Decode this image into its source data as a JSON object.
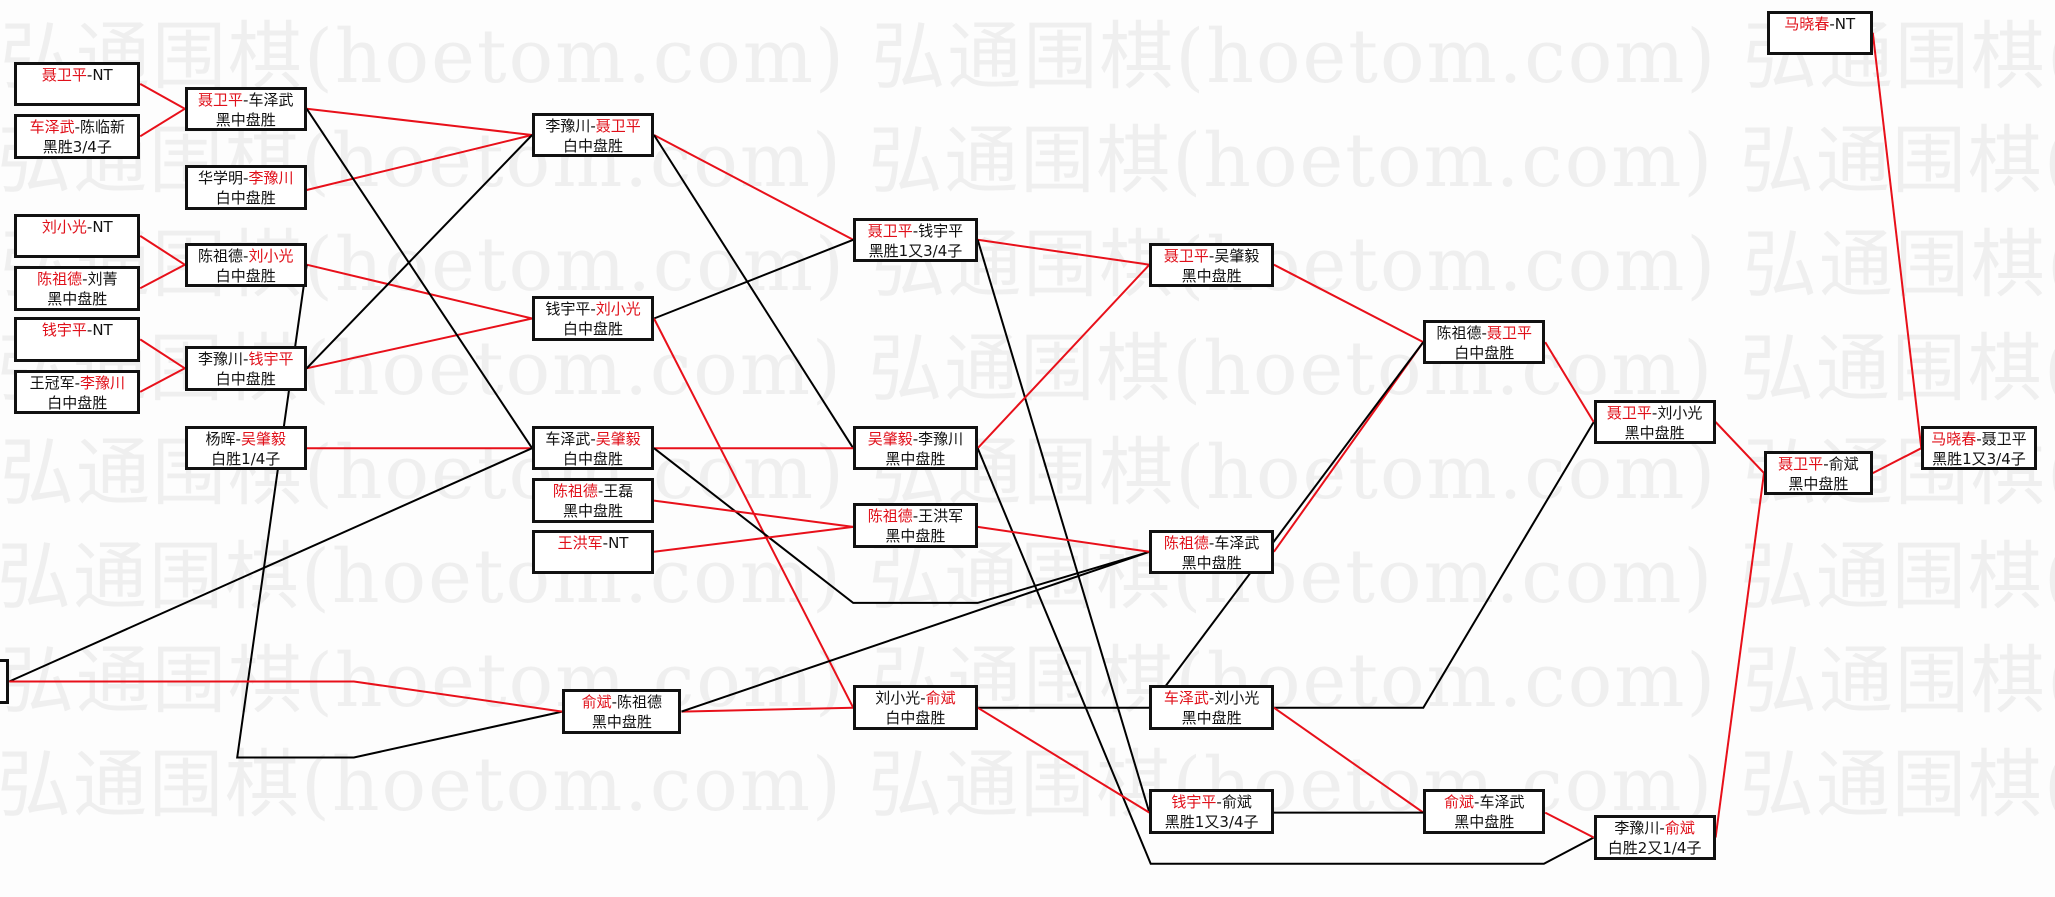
{
  "watermark": "弘通围棋(hoetom.com) 弘通围棋(hoetom.com) 弘通围棋(hoetom.com) 弘通围棋(hoetom.com)",
  "matches": [
    {
      "a": "聂卫平",
      "sep": "-",
      "b": "NT",
      "winner": "a",
      "result": ""
    },
    {
      "a": "车泽武",
      "sep": "-",
      "b": "陈临新",
      "winner": "a",
      "result": "黑胜3/4子"
    },
    {
      "a": "刘小光",
      "sep": "-",
      "b": "NT",
      "winner": "a",
      "result": ""
    },
    {
      "a": "陈祖德",
      "sep": "-",
      "b": "刘菁",
      "winner": "a",
      "result": "黑中盘胜"
    },
    {
      "a": "钱宇平",
      "sep": "-",
      "b": "NT",
      "winner": "a",
      "result": ""
    },
    {
      "a": "王冠军",
      "sep": "-",
      "b": "李豫川",
      "winner": "b",
      "result": "白中盘胜"
    },
    {
      "a": "聂卫平",
      "sep": "-",
      "b": "车泽武",
      "winner": "a",
      "result": "黑中盘胜"
    },
    {
      "a": "华学明",
      "sep": "-",
      "b": "李豫川",
      "winner": "b",
      "result": "白中盘胜"
    },
    {
      "a": "陈祖德",
      "sep": "-",
      "b": "刘小光",
      "winner": "b",
      "result": "白中盘胜"
    },
    {
      "a": "李豫川",
      "sep": "-",
      "b": "钱宇平",
      "winner": "b",
      "result": "白中盘胜"
    },
    {
      "a": "杨晖",
      "sep": "-",
      "b": "吴肇毅",
      "winner": "b",
      "result": "白胜1/4子"
    },
    {
      "a": "李豫川",
      "sep": "-",
      "b": "聂卫平",
      "winner": "b",
      "result": "白中盘胜"
    },
    {
      "a": "钱宇平",
      "sep": "-",
      "b": "刘小光",
      "winner": "b",
      "result": "白中盘胜"
    },
    {
      "a": "车泽武",
      "sep": "-",
      "b": "吴肇毅",
      "winner": "b",
      "result": "白中盘胜"
    },
    {
      "a": "陈祖德",
      "sep": "-",
      "b": "王磊",
      "winner": "a",
      "result": "黑中盘胜"
    },
    {
      "a": "王洪军",
      "sep": "-",
      "b": "NT",
      "winner": "a",
      "result": ""
    },
    {
      "a": "俞斌",
      "sep": "-",
      "b": "陈祖德",
      "winner": "a",
      "result": "黑中盘胜"
    },
    {
      "a": "聂卫平",
      "sep": "-",
      "b": "钱宇平",
      "winner": "a",
      "result": "黑胜1又3/4子"
    },
    {
      "a": "吴肇毅",
      "sep": "-",
      "b": "李豫川",
      "winner": "a",
      "result": "黑中盘胜"
    },
    {
      "a": "陈祖德",
      "sep": "-",
      "b": "王洪军",
      "winner": "a",
      "result": "黑中盘胜"
    },
    {
      "a": "刘小光",
      "sep": "-",
      "b": "俞斌",
      "winner": "b",
      "result": "白中盘胜"
    },
    {
      "a": "聂卫平",
      "sep": "-",
      "b": "吴肇毅",
      "winner": "a",
      "result": "黑中盘胜"
    },
    {
      "a": "陈祖德",
      "sep": "-",
      "b": "车泽武",
      "winner": "a",
      "result": "黑中盘胜"
    },
    {
      "a": "车泽武",
      "sep": "-",
      "b": "刘小光",
      "winner": "a",
      "result": "黑中盘胜"
    },
    {
      "a": "钱宇平",
      "sep": "-",
      "b": "俞斌",
      "winner": "a",
      "result": "黑胜1又3/4子"
    },
    {
      "a": "陈祖德",
      "sep": "-",
      "b": "聂卫平",
      "winner": "b",
      "result": "白中盘胜"
    },
    {
      "a": "俞斌",
      "sep": "-",
      "b": "车泽武",
      "winner": "a",
      "result": "黑中盘胜"
    },
    {
      "a": "聂卫平",
      "sep": "-",
      "b": "刘小光",
      "winner": "a",
      "result": "黑中盘胜"
    },
    {
      "a": "李豫川",
      "sep": "-",
      "b": "俞斌",
      "winner": "b",
      "result": "白胜2又1/4子"
    },
    {
      "a": "马晓春",
      "sep": "-",
      "b": "NT",
      "winner": "a",
      "result": ""
    },
    {
      "a": "聂卫平",
      "sep": "-",
      "b": "俞斌",
      "winner": "a",
      "result": "黑中盘胜"
    },
    {
      "a": "马晓春",
      "sep": "-",
      "b": "聂卫平",
      "winner": "a",
      "result": "黑胜1又3/4子"
    }
  ],
  "colors": {
    "winner": "#e0101a",
    "win_line": "#e8101a",
    "loss_line": "#000000",
    "border": "#111111"
  }
}
